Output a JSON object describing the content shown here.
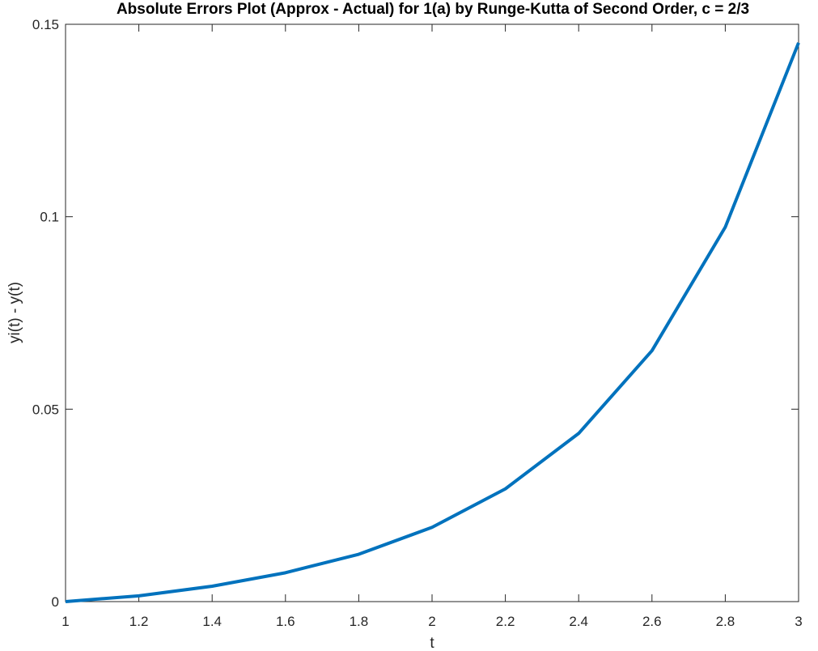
{
  "chart_data": {
    "type": "line",
    "title": "Absolute Errors Plot (Approx - Actual) for 1(a) by Runge-Kutta of Second Order, c = 2/3",
    "xlabel": "t",
    "ylabel": "yi(t) - y(t)",
    "xlim": [
      1,
      3
    ],
    "ylim": [
      0,
      0.15
    ],
    "x_ticks": [
      1,
      1.2,
      1.4,
      1.6,
      1.8,
      2,
      2.2,
      2.4,
      2.6,
      2.8,
      3
    ],
    "x_tick_labels": [
      "1",
      "1.2",
      "1.4",
      "1.6",
      "1.8",
      "2",
      "2.2",
      "2.4",
      "2.6",
      "2.8",
      "3"
    ],
    "y_ticks": [
      0,
      0.05,
      0.1,
      0.15
    ],
    "y_tick_labels": [
      "0",
      "0.05",
      "0.1",
      "0.15"
    ],
    "grid": false,
    "box": true,
    "series": [
      {
        "color": "#0072BD",
        "x": [
          1,
          1.2,
          1.4,
          1.6,
          1.8,
          2,
          2.2,
          2.4,
          2.6,
          2.8,
          3
        ],
        "y": [
          0,
          0.0015,
          0.004,
          0.0075,
          0.0123,
          0.0193,
          0.0293,
          0.0437,
          0.0652,
          0.0973,
          0.1452
        ]
      }
    ]
  }
}
